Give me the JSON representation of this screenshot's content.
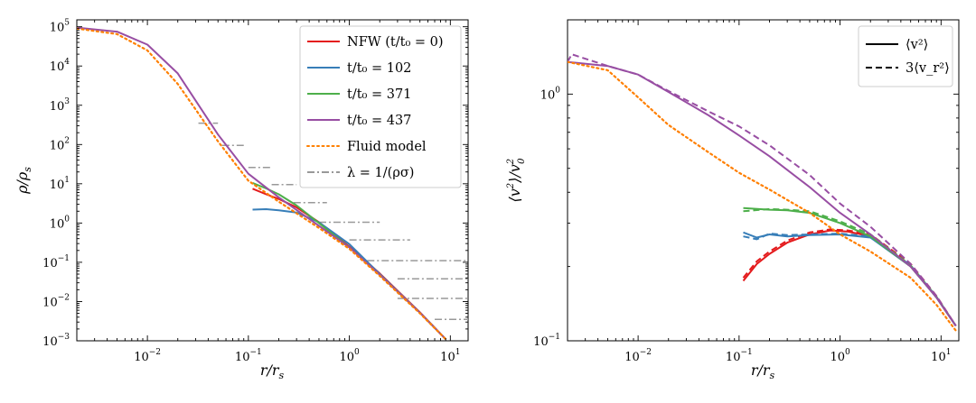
{
  "chart_data": [
    {
      "type": "line",
      "scale": "loglog",
      "xlabel": "r/r_s",
      "ylabel": "ρ/ρ_s",
      "xlim": [
        0.002,
        15
      ],
      "ylim": [
        0.001,
        150000
      ],
      "x_ticks": [
        {
          "base": "10",
          "exp": "−2",
          "v": 0.01
        },
        {
          "base": "10",
          "exp": "−1",
          "v": 0.1
        },
        {
          "base": "10",
          "exp": "0",
          "v": 1
        },
        {
          "base": "10",
          "exp": "1",
          "v": 10
        }
      ],
      "y_ticks": [
        {
          "base": "10",
          "exp": "5",
          "v": 100000
        },
        {
          "base": "10",
          "exp": "4",
          "v": 10000
        },
        {
          "base": "10",
          "exp": "3",
          "v": 1000
        },
        {
          "base": "10",
          "exp": "2",
          "v": 100
        },
        {
          "base": "10",
          "exp": "1",
          "v": 10
        },
        {
          "base": "10",
          "exp": "0",
          "v": 1
        },
        {
          "base": "10",
          "exp": "−1",
          "v": 0.1
        },
        {
          "base": "10",
          "exp": "−2",
          "v": 0.01
        },
        {
          "base": "10",
          "exp": "−3",
          "v": 0.001
        }
      ],
      "legend": {
        "position": "top-right",
        "entries": [
          {
            "label": "NFW (t/t₀ = 0)",
            "color": "#e41a1c",
            "style": "solid"
          },
          {
            "label": "t/t₀ = 102",
            "color": "#377eb8",
            "style": "solid"
          },
          {
            "label": "t/t₀ = 371",
            "color": "#4daf4a",
            "style": "solid"
          },
          {
            "label": "t/t₀ = 437",
            "color": "#984ea3",
            "style": "solid"
          },
          {
            "label": "Fluid model",
            "color": "#ff7f00",
            "style": "dotted"
          },
          {
            "label": "λ = 1/(ρσ)",
            "color": "#999999",
            "style": "dashdot"
          }
        ]
      },
      "series": [
        {
          "name": "NFW (t/t₀ = 0)",
          "color": "#e41a1c",
          "style": "solid",
          "x": [
            0.11,
            0.15,
            0.2,
            0.3,
            0.5,
            1,
            2,
            5,
            9
          ],
          "y": [
            7.5,
            5.4,
            4.1,
            2.5,
            1.05,
            0.25,
            0.052,
            0.0053,
            0.0011
          ]
        },
        {
          "name": "t/t₀ = 102",
          "color": "#377eb8",
          "style": "solid",
          "x": [
            0.11,
            0.15,
            0.2,
            0.3,
            0.5,
            1,
            2,
            5,
            9
          ],
          "y": [
            2.2,
            2.25,
            2.1,
            1.85,
            1.05,
            0.29,
            0.05,
            0.0052,
            0.0011
          ]
        },
        {
          "name": "t/t₀ = 371",
          "color": "#4daf4a",
          "style": "solid",
          "x": [
            0.11,
            0.15,
            0.2,
            0.3,
            0.5,
            1,
            2,
            5,
            9
          ],
          "y": [
            10.5,
            7.6,
            5.4,
            2.8,
            1.0,
            0.24,
            0.048,
            0.0052,
            0.0011
          ]
        },
        {
          "name": "t/t₀ = 437",
          "color": "#984ea3",
          "style": "solid",
          "x": [
            0.002,
            0.005,
            0.01,
            0.02,
            0.05,
            0.1,
            0.2,
            0.5,
            1,
            2,
            5,
            9
          ],
          "y": [
            95000,
            75000,
            35000,
            6500,
            180,
            18,
            4.5,
            0.85,
            0.24,
            0.048,
            0.0052,
            0.0011
          ]
        },
        {
          "name": "Fluid model",
          "color": "#ff7f00",
          "style": "dotted",
          "x": [
            0.002,
            0.005,
            0.01,
            0.02,
            0.05,
            0.1,
            0.2,
            0.5,
            1,
            2,
            5,
            9
          ],
          "y": [
            90000,
            65000,
            25000,
            3500,
            120,
            12,
            3.5,
            0.75,
            0.22,
            0.045,
            0.005,
            0.0011
          ]
        }
      ],
      "lambda_segments": [
        {
          "y": 350,
          "x0": 0.032,
          "x1": 0.05
        },
        {
          "y": 95,
          "x0": 0.055,
          "x1": 0.09
        },
        {
          "y": 26,
          "x0": 0.1,
          "x1": 0.17
        },
        {
          "y": 9.5,
          "x0": 0.17,
          "x1": 0.3
        },
        {
          "y": 3.3,
          "x0": 0.28,
          "x1": 0.6
        },
        {
          "y": 1.05,
          "x0": 0.5,
          "x1": 2.0
        },
        {
          "y": 0.37,
          "x0": 1.0,
          "x1": 4.0
        },
        {
          "y": 0.11,
          "x0": 1.5,
          "x1": 15
        },
        {
          "y": 0.038,
          "x0": 3.0,
          "x1": 15
        },
        {
          "y": 0.012,
          "x0": 3.0,
          "x1": 15
        },
        {
          "y": 0.0035,
          "x0": 7.0,
          "x1": 15
        }
      ]
    },
    {
      "type": "line",
      "scale": "loglog",
      "xlabel": "r/r_s",
      "ylabel": "⟨v²⟩/v₀²",
      "xlim": [
        0.002,
        15
      ],
      "ylim": [
        0.1,
        2.0
      ],
      "x_ticks": [
        {
          "base": "10",
          "exp": "−2",
          "v": 0.01
        },
        {
          "base": "10",
          "exp": "−1",
          "v": 0.1
        },
        {
          "base": "10",
          "exp": "0",
          "v": 1
        },
        {
          "base": "10",
          "exp": "1",
          "v": 10
        }
      ],
      "y_ticks": [
        {
          "base": "10",
          "exp": "0",
          "v": 1
        },
        {
          "base": "10",
          "exp": "−1",
          "v": 0.1
        }
      ],
      "legend": {
        "position": "top-right",
        "entries": [
          {
            "label": "⟨v²⟩",
            "style": "solid",
            "color": "#000000"
          },
          {
            "label": "3⟨v_r²⟩",
            "style": "dashed",
            "color": "#000000"
          }
        ]
      },
      "series": [
        {
          "name": "NFW v²",
          "color": "#e41a1c",
          "style": "solid",
          "x": [
            0.11,
            0.15,
            0.2,
            0.3,
            0.5,
            0.8,
            1.2,
            2,
            5,
            9,
            14
          ],
          "y": [
            0.175,
            0.205,
            0.225,
            0.25,
            0.27,
            0.28,
            0.277,
            0.265,
            0.2,
            0.15,
            0.115
          ]
        },
        {
          "name": "NFW 3vr²",
          "color": "#e41a1c",
          "style": "dashed",
          "x": [
            0.11,
            0.15,
            0.2,
            0.3,
            0.5,
            0.8,
            1.2,
            2,
            5,
            9,
            14
          ],
          "y": [
            0.18,
            0.21,
            0.23,
            0.255,
            0.275,
            0.283,
            0.28,
            0.27,
            0.205,
            0.152,
            0.115
          ]
        },
        {
          "name": "t/t0=102 v²",
          "color": "#377eb8",
          "style": "solid",
          "x": [
            0.11,
            0.15,
            0.2,
            0.3,
            0.5,
            1,
            2,
            5,
            9,
            14
          ],
          "y": [
            0.275,
            0.262,
            0.27,
            0.265,
            0.268,
            0.27,
            0.262,
            0.2,
            0.15,
            0.115
          ]
        },
        {
          "name": "t/t0=102 3vr²",
          "color": "#377eb8",
          "style": "dashed",
          "x": [
            0.11,
            0.15,
            0.2,
            0.3,
            0.5,
            1,
            2,
            5,
            9,
            14
          ],
          "y": [
            0.265,
            0.258,
            0.272,
            0.268,
            0.27,
            0.272,
            0.265,
            0.202,
            0.151,
            0.115
          ]
        },
        {
          "name": "t/t0=371 v²",
          "color": "#4daf4a",
          "style": "solid",
          "x": [
            0.11,
            0.2,
            0.3,
            0.5,
            1,
            2,
            5,
            9,
            14
          ],
          "y": [
            0.345,
            0.34,
            0.338,
            0.33,
            0.3,
            0.265,
            0.2,
            0.15,
            0.115
          ]
        },
        {
          "name": "t/t0=371 3vr²",
          "color": "#4daf4a",
          "style": "dashed",
          "x": [
            0.11,
            0.2,
            0.3,
            0.5,
            1,
            2,
            5,
            9,
            14
          ],
          "y": [
            0.335,
            0.342,
            0.34,
            0.335,
            0.305,
            0.27,
            0.202,
            0.151,
            0.115
          ]
        },
        {
          "name": "t/t0=437 v²",
          "color": "#984ea3",
          "style": "solid",
          "x": [
            0.002,
            0.005,
            0.01,
            0.02,
            0.05,
            0.1,
            0.2,
            0.5,
            1,
            2,
            5,
            9,
            14
          ],
          "y": [
            1.35,
            1.3,
            1.2,
            1.02,
            0.82,
            0.68,
            0.56,
            0.42,
            0.33,
            0.27,
            0.2,
            0.15,
            0.115
          ]
        },
        {
          "name": "t/t0=437 3vr²",
          "color": "#984ea3",
          "style": "dashed",
          "x": [
            0.002,
            0.0022,
            0.005,
            0.01,
            0.02,
            0.05,
            0.1,
            0.2,
            0.5,
            1,
            2,
            5,
            9,
            14
          ],
          "y": [
            1.35,
            1.45,
            1.3,
            1.2,
            1.03,
            0.85,
            0.74,
            0.62,
            0.47,
            0.36,
            0.29,
            0.205,
            0.152,
            0.115
          ]
        },
        {
          "name": "Fluid model",
          "color": "#ff7f00",
          "style": "dotted",
          "x": [
            0.002,
            0.005,
            0.01,
            0.02,
            0.05,
            0.1,
            0.2,
            0.5,
            1,
            2,
            5,
            9,
            14
          ],
          "y": [
            1.35,
            1.25,
            0.97,
            0.75,
            0.58,
            0.48,
            0.41,
            0.33,
            0.27,
            0.23,
            0.18,
            0.14,
            0.11
          ]
        }
      ]
    }
  ]
}
